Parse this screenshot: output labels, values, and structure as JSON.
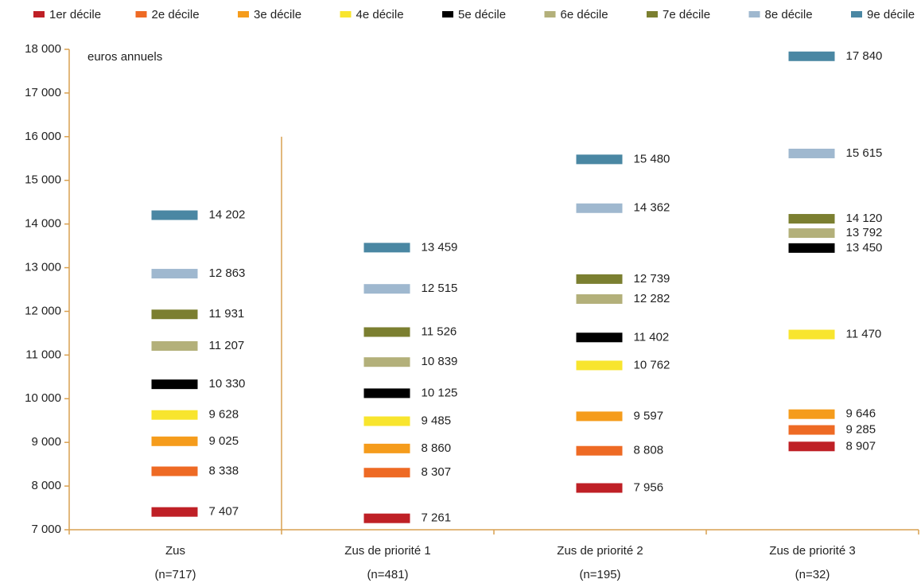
{
  "chart_data": {
    "type": "marker",
    "annotation": "euros annuels",
    "categories": [
      "Zus",
      "Zus de priorité 1",
      "Zus de priorité 2",
      "Zus de priorité 3"
    ],
    "category_notes": [
      "(n=717)",
      "(n=481)",
      "(n=195)",
      "(n=32)"
    ],
    "ylim": [
      7000,
      18000
    ],
    "yticks": [
      {
        "value": 7000,
        "label": "7 000"
      },
      {
        "value": 8000,
        "label": "8 000"
      },
      {
        "value": 9000,
        "label": "9 000"
      },
      {
        "value": 10000,
        "label": "10 000"
      },
      {
        "value": 11000,
        "label": "11 000"
      },
      {
        "value": 12000,
        "label": "12 000"
      },
      {
        "value": 13000,
        "label": "13 000"
      },
      {
        "value": 14000,
        "label": "14 000"
      },
      {
        "value": 15000,
        "label": "15 000"
      },
      {
        "value": 16000,
        "label": "16 000"
      },
      {
        "value": 17000,
        "label": "17 000"
      },
      {
        "value": 18000,
        "label": "18 000"
      }
    ],
    "axis_color": "#d9a050",
    "series": [
      {
        "name": "1er décile",
        "color": "#bf2026",
        "values": [
          7407,
          7261,
          7956,
          8907
        ],
        "value_labels": [
          "7 407",
          "7 261",
          "7 956",
          "8 907"
        ]
      },
      {
        "name": "2e décile",
        "color": "#ee6a24",
        "values": [
          8338,
          8307,
          8808,
          9285
        ],
        "value_labels": [
          "8 338",
          "8 307",
          "8 808",
          "9 285"
        ]
      },
      {
        "name": "3e décile",
        "color": "#f59c1c",
        "values": [
          9025,
          8860,
          9597,
          9646
        ],
        "value_labels": [
          "9 025",
          "8 860",
          "9 597",
          "9 646"
        ]
      },
      {
        "name": "4e décile",
        "color": "#f8e52e",
        "values": [
          9628,
          9485,
          10762,
          11470
        ],
        "value_labels": [
          "9 628",
          "9 485",
          "10 762",
          "11 470"
        ]
      },
      {
        "name": "5e décile",
        "color": "#000000",
        "values": [
          10330,
          10125,
          11402,
          13450
        ],
        "value_labels": [
          "10 330",
          "10 125",
          "11 402",
          "13 450"
        ]
      },
      {
        "name": "6e décile",
        "color": "#b3b07a",
        "values": [
          11207,
          10839,
          12282,
          13792
        ],
        "value_labels": [
          "11 207",
          "10 839",
          "12 282",
          "13 792"
        ]
      },
      {
        "name": "7e décile",
        "color": "#7b7f30",
        "values": [
          11931,
          11526,
          12739,
          14120
        ],
        "value_labels": [
          "11 931",
          "11 526",
          "12 739",
          "14 120"
        ]
      },
      {
        "name": "8e décile",
        "color": "#9fb8cf",
        "values": [
          12863,
          12515,
          14362,
          15615
        ],
        "value_labels": [
          "12 863",
          "12 515",
          "14 362",
          "15 615"
        ]
      },
      {
        "name": "9e décile",
        "color": "#4a87a3",
        "values": [
          14202,
          13459,
          15480,
          17840
        ],
        "value_labels": [
          "14 202",
          "13 459",
          "15 480",
          "17 840"
        ]
      }
    ]
  }
}
